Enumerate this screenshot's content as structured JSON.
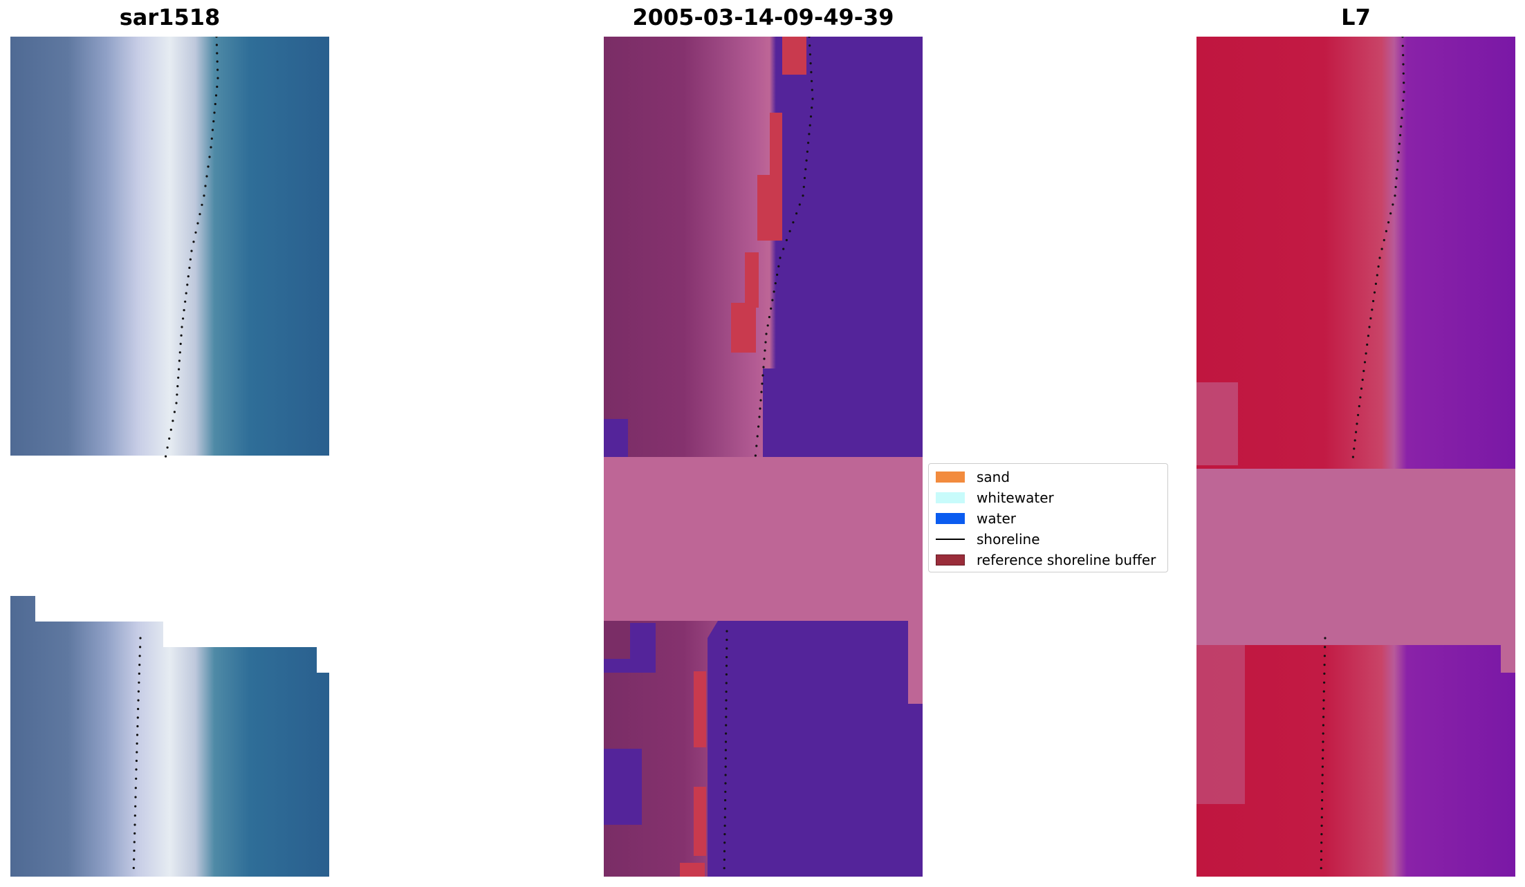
{
  "panels": [
    {
      "title": "sar1518"
    },
    {
      "title": "2005-03-14-09-49-39"
    },
    {
      "title": "L7"
    }
  ],
  "legend": {
    "items": [
      {
        "label": "sand",
        "color": "#f28b3e",
        "kind": "patch"
      },
      {
        "label": "whitewater",
        "color": "#c8fbfb",
        "kind": "patch"
      },
      {
        "label": "water",
        "color": "#0a5cf0",
        "kind": "patch"
      },
      {
        "label": "shoreline",
        "color": "#000000",
        "kind": "line"
      },
      {
        "label": "reference shoreline buffer",
        "color": "#9a2d3a",
        "kind": "patch"
      }
    ]
  },
  "colors": {
    "rgb_sand": "#c9cfe6",
    "rgb_water": "#2f6a98",
    "class_land": "#7a2d66",
    "class_water": "#54249a",
    "class_buffer": "#c93a4e",
    "nodata_pink": "#be6696",
    "ndwi_land": "#c0163f",
    "ndwi_water": "#7a18a6"
  }
}
